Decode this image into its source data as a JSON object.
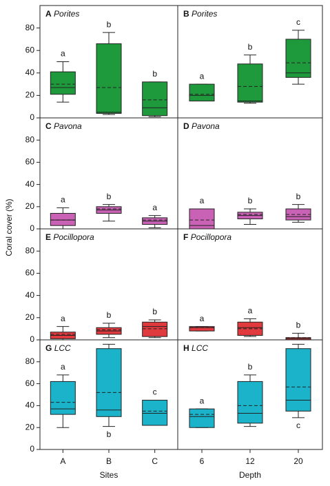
{
  "ylabel": "Coral cover (%)",
  "chart_data": [
    {
      "type": "box",
      "panel": "A",
      "title": "Porites",
      "color": "#1e9a3c",
      "ylim": [
        0,
        100
      ],
      "yticks": [
        0,
        20,
        40,
        60,
        80
      ],
      "boxes": [
        {
          "whisker_low": 14,
          "q1": 21,
          "median": 27,
          "q3": 41,
          "whisker_high": 50,
          "mean": 30
        },
        {
          "whisker_low": 3,
          "q1": 4,
          "median": 5,
          "q3": 66,
          "whisker_high": 76,
          "mean": 27
        },
        {
          "whisker_low": 1,
          "q1": 2,
          "median": 9,
          "q3": 32,
          "whisker_high": 32,
          "mean": 16
        }
      ],
      "letters": [
        "a",
        "b",
        "b"
      ]
    },
    {
      "type": "box",
      "panel": "B",
      "title": "Porites",
      "color": "#1e9a3c",
      "ylim": [
        0,
        100
      ],
      "boxes": [
        {
          "whisker_low": 15,
          "q1": 15,
          "median": 20,
          "q3": 30,
          "whisker_high": 30,
          "mean": 21
        },
        {
          "whisker_low": 13,
          "q1": 14,
          "median": 15,
          "q3": 48,
          "whisker_high": 56,
          "mean": 28
        },
        {
          "whisker_low": 30,
          "q1": 36,
          "median": 40,
          "q3": 70,
          "whisker_high": 78,
          "mean": 49
        }
      ],
      "letters": [
        "a",
        "b",
        "c"
      ]
    },
    {
      "type": "box",
      "panel": "C",
      "title": "Pavona",
      "color": "#c962b4",
      "ylim": [
        0,
        100
      ],
      "yticks": [
        0,
        20,
        40,
        60,
        80
      ],
      "boxes": [
        {
          "whisker_low": 0,
          "q1": 3,
          "median": 8,
          "q3": 14,
          "whisker_high": 19,
          "mean": 8
        },
        {
          "whisker_low": 7,
          "q1": 14,
          "median": 17,
          "q3": 20,
          "whisker_high": 22,
          "mean": 18
        },
        {
          "whisker_low": 1,
          "q1": 4,
          "median": 7,
          "q3": 10,
          "whisker_high": 12,
          "mean": 8
        }
      ],
      "letters": [
        "a",
        "b",
        "a"
      ]
    },
    {
      "type": "box",
      "panel": "D",
      "title": "Pavona",
      "color": "#c962b4",
      "ylim": [
        0,
        100
      ],
      "boxes": [
        {
          "whisker_low": 0,
          "q1": 0,
          "median": 3,
          "q3": 18,
          "whisker_high": 18,
          "mean": 8
        },
        {
          "whisker_low": 4,
          "q1": 9,
          "median": 12,
          "q3": 15,
          "whisker_high": 18,
          "mean": 13
        },
        {
          "whisker_low": 6,
          "q1": 8,
          "median": 11,
          "q3": 18,
          "whisker_high": 22,
          "mean": 13
        }
      ],
      "letters": [
        "a",
        "b",
        "b"
      ]
    },
    {
      "type": "box",
      "panel": "E",
      "title": "Pocillopora",
      "color": "#e0393e",
      "ylim": [
        0,
        100
      ],
      "yticks": [
        0,
        20,
        40,
        60,
        80
      ],
      "boxes": [
        {
          "whisker_low": 0,
          "q1": 1,
          "median": 4,
          "q3": 7,
          "whisker_high": 12,
          "mean": 5
        },
        {
          "whisker_low": 2,
          "q1": 5,
          "median": 8,
          "q3": 11,
          "whisker_high": 15,
          "mean": 9
        },
        {
          "whisker_low": 2,
          "q1": 3,
          "median": 12,
          "q3": 16,
          "whisker_high": 18,
          "mean": 10
        }
      ],
      "letters": [
        "a",
        "b",
        "b"
      ]
    },
    {
      "type": "box",
      "panel": "F",
      "title": "Pocillopora",
      "color": "#e0393e",
      "ylim": [
        0,
        100
      ],
      "boxes": [
        {
          "whisker_low": 8,
          "q1": 8,
          "median": 11,
          "q3": 12,
          "whisker_high": 12,
          "mean": 11
        },
        {
          "whisker_low": 3,
          "q1": 4,
          "median": 11,
          "q3": 16,
          "whisker_high": 19,
          "mean": 10
        },
        {
          "whisker_low": 0,
          "q1": 0,
          "median": 1,
          "q3": 2,
          "whisker_high": 6,
          "mean": 2
        }
      ],
      "letters": [
        "a",
        "a",
        "b"
      ]
    },
    {
      "type": "box",
      "panel": "G",
      "title": "LCC",
      "color": "#1ab3c9",
      "ylim": [
        0,
        100
      ],
      "yticks": [
        0,
        20,
        40,
        60,
        80
      ],
      "categories": [
        "A",
        "B",
        "C"
      ],
      "xlabel": "Sites",
      "boxes": [
        {
          "whisker_low": 20,
          "q1": 32,
          "median": 37,
          "q3": 62,
          "whisker_high": 68,
          "mean": 43
        },
        {
          "whisker_low": 21,
          "q1": 30,
          "median": 36,
          "q3": 92,
          "whisker_high": 96,
          "mean": 52
        },
        {
          "whisker_low": 22,
          "q1": 22,
          "median": 33,
          "q3": 45,
          "whisker_high": 45,
          "mean": 35
        }
      ],
      "letters": [
        "a",
        "b",
        "c"
      ],
      "letter_positions": [
        "above",
        "below",
        "above"
      ]
    },
    {
      "type": "box",
      "panel": "H",
      "title": "LCC",
      "color": "#1ab3c9",
      "ylim": [
        0,
        100
      ],
      "categories": [
        "6",
        "12",
        "20"
      ],
      "xlabel": "Depth",
      "boxes": [
        {
          "whisker_low": 20,
          "q1": 20,
          "median": 30,
          "q3": 37,
          "whisker_high": 37,
          "mean": 32
        },
        {
          "whisker_low": 21,
          "q1": 24,
          "median": 33,
          "q3": 62,
          "whisker_high": 68,
          "mean": 40
        },
        {
          "whisker_low": 29,
          "q1": 35,
          "median": 45,
          "q3": 92,
          "whisker_high": 96,
          "mean": 57
        }
      ],
      "letters": [
        "a",
        "b",
        "c"
      ],
      "letter_positions": [
        "above",
        "above",
        "below"
      ]
    }
  ]
}
